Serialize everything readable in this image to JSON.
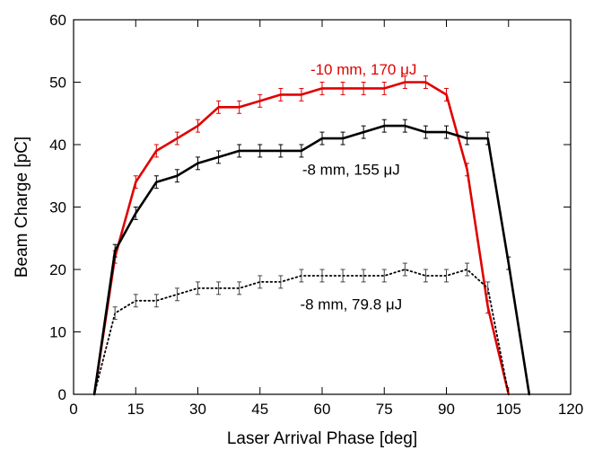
{
  "chart_data": {
    "type": "line",
    "title": "",
    "xlabel": "Laser Arrival Phase [deg]",
    "ylabel": "Beam Charge [pC]",
    "xlim": [
      0,
      120
    ],
    "ylim": [
      0,
      60
    ],
    "xticks": [
      0,
      15,
      30,
      45,
      60,
      75,
      90,
      105,
      120
    ],
    "yticks": [
      0,
      10,
      20,
      30,
      40,
      50,
      60
    ],
    "grid": false,
    "legend": "none",
    "series": [
      {
        "label": "-10 mm, 170 μJ",
        "color": "#e00000",
        "line_style": "solid",
        "error_bar": 1,
        "points": [
          [
            5,
            0
          ],
          [
            10,
            22
          ],
          [
            15,
            34
          ],
          [
            20,
            39
          ],
          [
            25,
            41
          ],
          [
            30,
            43
          ],
          [
            35,
            46
          ],
          [
            40,
            46
          ],
          [
            45,
            47
          ],
          [
            50,
            48
          ],
          [
            55,
            48
          ],
          [
            60,
            49
          ],
          [
            65,
            49
          ],
          [
            70,
            49
          ],
          [
            75,
            49
          ],
          [
            80,
            50
          ],
          [
            85,
            50
          ],
          [
            90,
            48
          ],
          [
            95,
            36
          ],
          [
            100,
            14
          ],
          [
            105,
            0
          ]
        ]
      },
      {
        "label": "-8 mm, 155 μJ",
        "color": "#000000",
        "line_style": "solid",
        "error_bar": 1,
        "points": [
          [
            5,
            0
          ],
          [
            10,
            23
          ],
          [
            15,
            29
          ],
          [
            20,
            34
          ],
          [
            25,
            35
          ],
          [
            30,
            37
          ],
          [
            35,
            38
          ],
          [
            40,
            39
          ],
          [
            45,
            39
          ],
          [
            50,
            39
          ],
          [
            55,
            39
          ],
          [
            60,
            41
          ],
          [
            65,
            41
          ],
          [
            70,
            42
          ],
          [
            75,
            43
          ],
          [
            80,
            43
          ],
          [
            85,
            42
          ],
          [
            90,
            42
          ],
          [
            95,
            41
          ],
          [
            100,
            41
          ],
          [
            105,
            21
          ],
          [
            110,
            0
          ]
        ]
      },
      {
        "label": "-8 mm, 79.8 μJ",
        "color": "#000000",
        "line_style": "dotted",
        "error_bar": 1,
        "points": [
          [
            5,
            0
          ],
          [
            10,
            13
          ],
          [
            15,
            15
          ],
          [
            20,
            15
          ],
          [
            25,
            16
          ],
          [
            30,
            17
          ],
          [
            35,
            17
          ],
          [
            40,
            17
          ],
          [
            45,
            18
          ],
          [
            50,
            18
          ],
          [
            55,
            19
          ],
          [
            60,
            19
          ],
          [
            65,
            19
          ],
          [
            70,
            19
          ],
          [
            75,
            19
          ],
          [
            80,
            20
          ],
          [
            85,
            19
          ],
          [
            90,
            19
          ],
          [
            95,
            20
          ],
          [
            100,
            17
          ],
          [
            105,
            0
          ]
        ]
      }
    ],
    "annotations": [
      {
        "text": "-10 mm, 170 μJ",
        "x": 70,
        "y": 51.2,
        "color": "#e00000"
      },
      {
        "text": "-8 mm, 155 μJ",
        "x": 67,
        "y": 35.2,
        "color": "#000000"
      },
      {
        "text": "-8 mm, 79.8 μJ",
        "x": 67,
        "y": 13.6,
        "color": "#000000"
      }
    ]
  }
}
